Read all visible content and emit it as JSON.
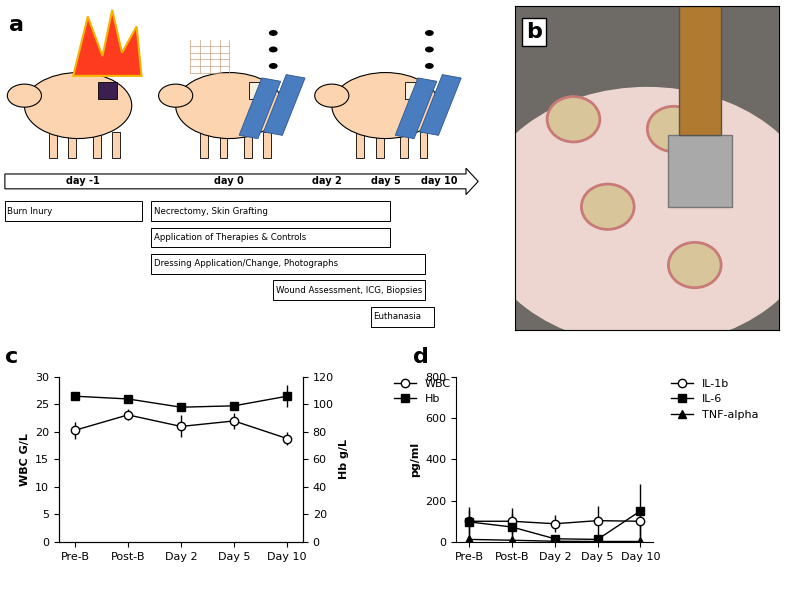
{
  "diagram": {
    "label": "a",
    "days": [
      "day -1",
      "day 0",
      "day 2",
      "day 5",
      "day 10"
    ],
    "steps": [
      "Burn Inury",
      "Necrectomy, Skin Grafting",
      "Application of Therapies & Controls",
      "Dressing Application/Change, Photographs",
      "Wound Assessment, ICG, Biopsies",
      "Euthanasia"
    ]
  },
  "photo": {
    "label": "b"
  },
  "chart_data": [
    {
      "type": "line",
      "title": "c",
      "categories": [
        "Pre-B",
        "Post-B",
        "Day 2",
        "Day 5",
        "Day 10"
      ],
      "ylabel": "WBC G/L",
      "y2label": "Hb g/L",
      "ylim": [
        0,
        30
      ],
      "yticks": [
        0,
        5,
        10,
        15,
        20,
        25,
        30
      ],
      "y2lim": [
        0,
        120
      ],
      "y2ticks": [
        0,
        20,
        40,
        60,
        80,
        100,
        120
      ],
      "legend": "upper left",
      "series": [
        {
          "name": "WBC",
          "color": "#000000",
          "marker": "open_circle",
          "axis": "y",
          "values": [
            20.3,
            23.1,
            21.0,
            22.0,
            18.8
          ],
          "errors": [
            1.5,
            1.0,
            2.0,
            1.5,
            1.2
          ]
        },
        {
          "name": "Hb",
          "color": "#000000",
          "marker": "square",
          "axis": "y2",
          "values": [
            106,
            104,
            98,
            99,
            106
          ],
          "errors": [
            2,
            2,
            3,
            3,
            8
          ]
        }
      ]
    },
    {
      "type": "line",
      "title": "d",
      "categories": [
        "Pre-B",
        "Post-B",
        "Day 2",
        "Day 5",
        "Day 10"
      ],
      "ylabel": "pg/ml",
      "ylim": [
        0,
        800
      ],
      "yticks": [
        0,
        200,
        400,
        600,
        800
      ],
      "legend": "upper left",
      "series": [
        {
          "name": "IL-1b",
          "color": "#000000",
          "marker": "open_circle",
          "values": [
            100,
            100,
            88,
            103,
            100
          ],
          "errors": [
            70,
            65,
            40,
            70,
            70
          ]
        },
        {
          "name": "IL-6",
          "color": "#000000",
          "marker": "square",
          "values": [
            97,
            72,
            15,
            12,
            150
          ],
          "errors": [
            60,
            70,
            20,
            20,
            130
          ]
        },
        {
          "name": "TNF-alpha",
          "color": "#000000",
          "marker": "triangle",
          "values": [
            12,
            8,
            3,
            2,
            2
          ],
          "errors": [
            5,
            4,
            2,
            2,
            2
          ]
        }
      ]
    }
  ]
}
